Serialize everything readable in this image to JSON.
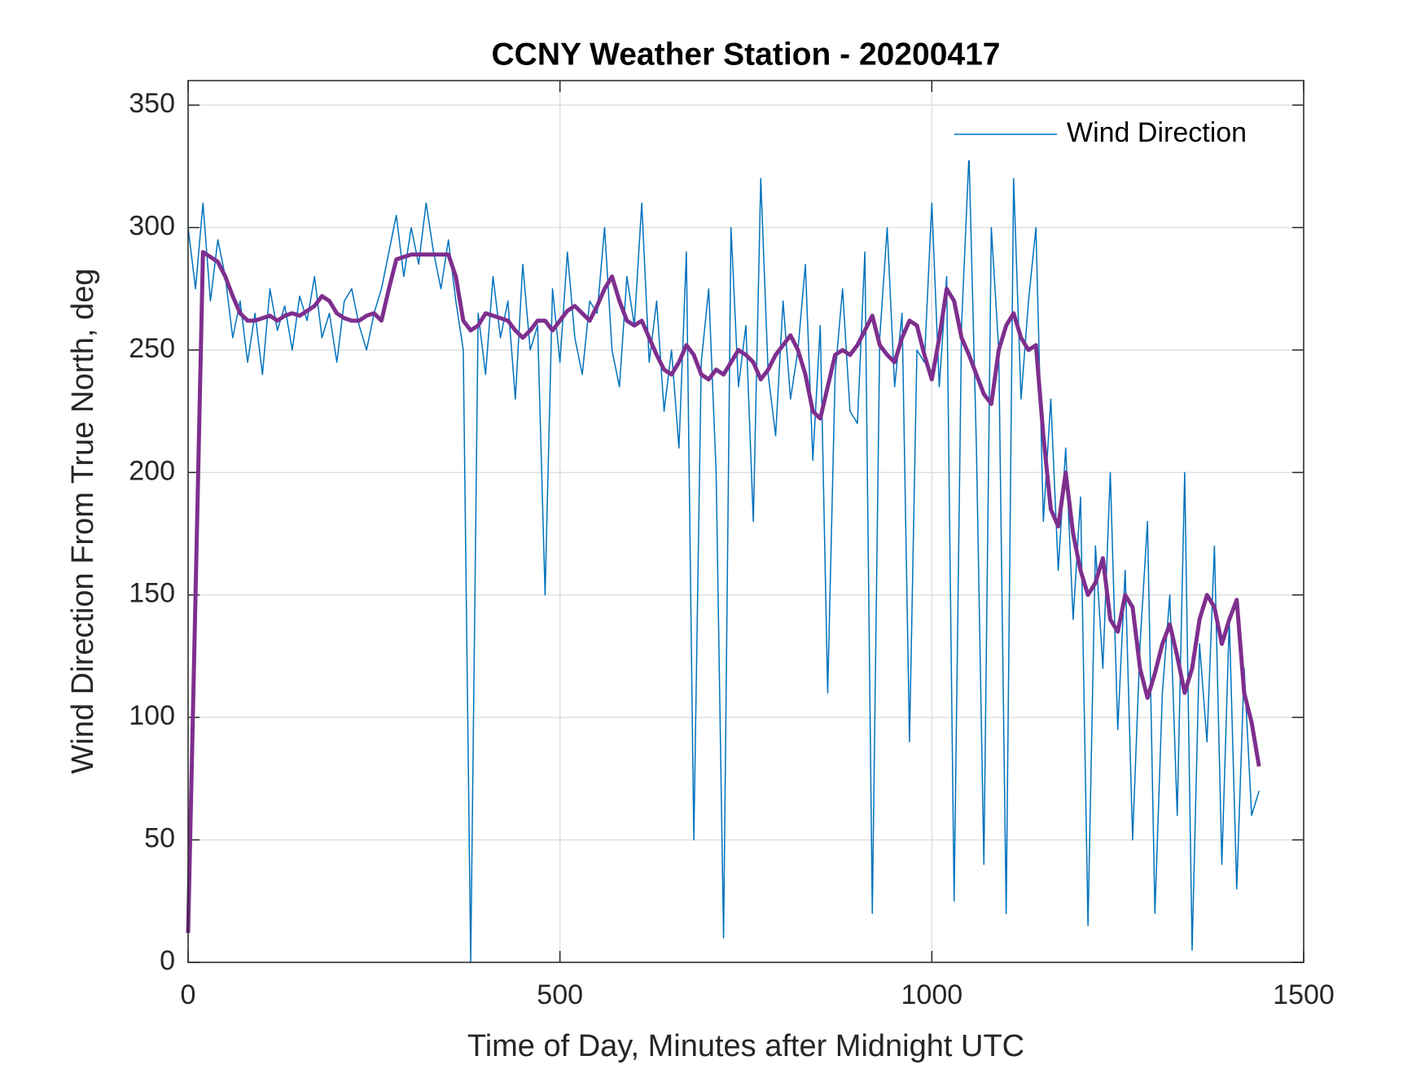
{
  "chart_data": {
    "type": "line",
    "title": "CCNY Weather Station - 20200417",
    "x_label": "Time of Day, Minutes after Midnight UTC",
    "y_label": "Wind Direction From True North, deg",
    "xlim": [
      0,
      1500
    ],
    "xticks": [
      0,
      500,
      1000,
      1500
    ],
    "ylim": [
      0,
      360
    ],
    "yticks": [
      0,
      50,
      100,
      150,
      200,
      250,
      300,
      350
    ],
    "grid": true,
    "legend": "top-right",
    "x": [
      0,
      10,
      20,
      30,
      40,
      50,
      60,
      70,
      80,
      90,
      100,
      110,
      120,
      130,
      140,
      150,
      160,
      170,
      180,
      190,
      200,
      210,
      220,
      230,
      240,
      250,
      260,
      270,
      280,
      290,
      300,
      310,
      320,
      330,
      340,
      350,
      360,
      370,
      380,
      390,
      400,
      410,
      420,
      430,
      440,
      450,
      460,
      470,
      480,
      490,
      500,
      510,
      520,
      530,
      540,
      550,
      560,
      570,
      580,
      590,
      600,
      610,
      620,
      630,
      640,
      650,
      660,
      670,
      680,
      690,
      700,
      710,
      720,
      730,
      740,
      750,
      760,
      770,
      780,
      790,
      800,
      810,
      820,
      830,
      840,
      850,
      860,
      870,
      880,
      890,
      900,
      910,
      920,
      930,
      940,
      950,
      960,
      970,
      980,
      990,
      1000,
      1010,
      1020,
      1030,
      1040,
      1050,
      1060,
      1070,
      1080,
      1090,
      1100,
      1110,
      1120,
      1130,
      1140,
      1150,
      1160,
      1170,
      1180,
      1190,
      1200,
      1210,
      1220,
      1230,
      1240,
      1250,
      1260,
      1270,
      1280,
      1290,
      1300,
      1310,
      1320,
      1330,
      1340,
      1350,
      1360,
      1370,
      1380,
      1390,
      1400,
      1410,
      1420,
      1430,
      1440
    ],
    "series": [
      {
        "name": "Wind Direction",
        "color": "#0072bd",
        "width": 1.5,
        "values": [
          300,
          275,
          310,
          270,
          295,
          280,
          255,
          270,
          245,
          265,
          240,
          275,
          258,
          268,
          250,
          272,
          262,
          280,
          255,
          265,
          245,
          270,
          275,
          260,
          250,
          265,
          275,
          290,
          305,
          280,
          300,
          285,
          310,
          290,
          275,
          295,
          270,
          250,
          0,
          265,
          240,
          280,
          255,
          270,
          230,
          285,
          250,
          260,
          150,
          275,
          245,
          290,
          255,
          240,
          270,
          265,
          300,
          250,
          235,
          280,
          260,
          310,
          245,
          270,
          225,
          250,
          210,
          290,
          50,
          245,
          275,
          200,
          10,
          300,
          235,
          260,
          180,
          320,
          240,
          215,
          270,
          230,
          250,
          285,
          205,
          260,
          110,
          240,
          275,
          225,
          220,
          290,
          20,
          255,
          300,
          235,
          265,
          90,
          250,
          245,
          310,
          235,
          280,
          25,
          260,
          330,
          210,
          40,
          300,
          250,
          20,
          320,
          230,
          270,
          300,
          180,
          230,
          160,
          210,
          140,
          190,
          15,
          170,
          120,
          200,
          95,
          160,
          50,
          130,
          180,
          20,
          110,
          150,
          60,
          200,
          5,
          130,
          90,
          170,
          40,
          140,
          30,
          120,
          60,
          70
        ]
      },
      {
        "color": "#7e2f8e",
        "width": 5,
        "values": [
          12,
          150,
          290,
          288,
          286,
          280,
          272,
          265,
          262,
          262,
          263,
          264,
          262,
          264,
          265,
          264,
          266,
          268,
          272,
          270,
          265,
          263,
          262,
          262,
          264,
          265,
          262,
          275,
          287,
          288,
          289,
          289,
          289,
          289,
          289,
          289,
          280,
          262,
          258,
          260,
          265,
          264,
          263,
          262,
          258,
          255,
          258,
          262,
          262,
          258,
          262,
          266,
          268,
          265,
          262,
          268,
          275,
          280,
          270,
          262,
          260,
          262,
          255,
          248,
          242,
          240,
          245,
          252,
          248,
          240,
          238,
          242,
          240,
          245,
          250,
          248,
          245,
          238,
          242,
          248,
          252,
          256,
          250,
          240,
          225,
          222,
          235,
          248,
          250,
          248,
          252,
          258,
          264,
          252,
          248,
          245,
          255,
          262,
          260,
          248,
          238,
          255,
          275,
          270,
          255,
          248,
          240,
          232,
          228,
          250,
          260,
          265,
          255,
          250,
          252,
          215,
          185,
          178,
          200,
          175,
          160,
          150,
          155,
          165,
          140,
          135,
          150,
          145,
          120,
          108,
          118,
          130,
          138,
          125,
          110,
          120,
          140,
          150,
          145,
          130,
          140,
          148,
          110,
          98,
          80
        ]
      }
    ]
  }
}
